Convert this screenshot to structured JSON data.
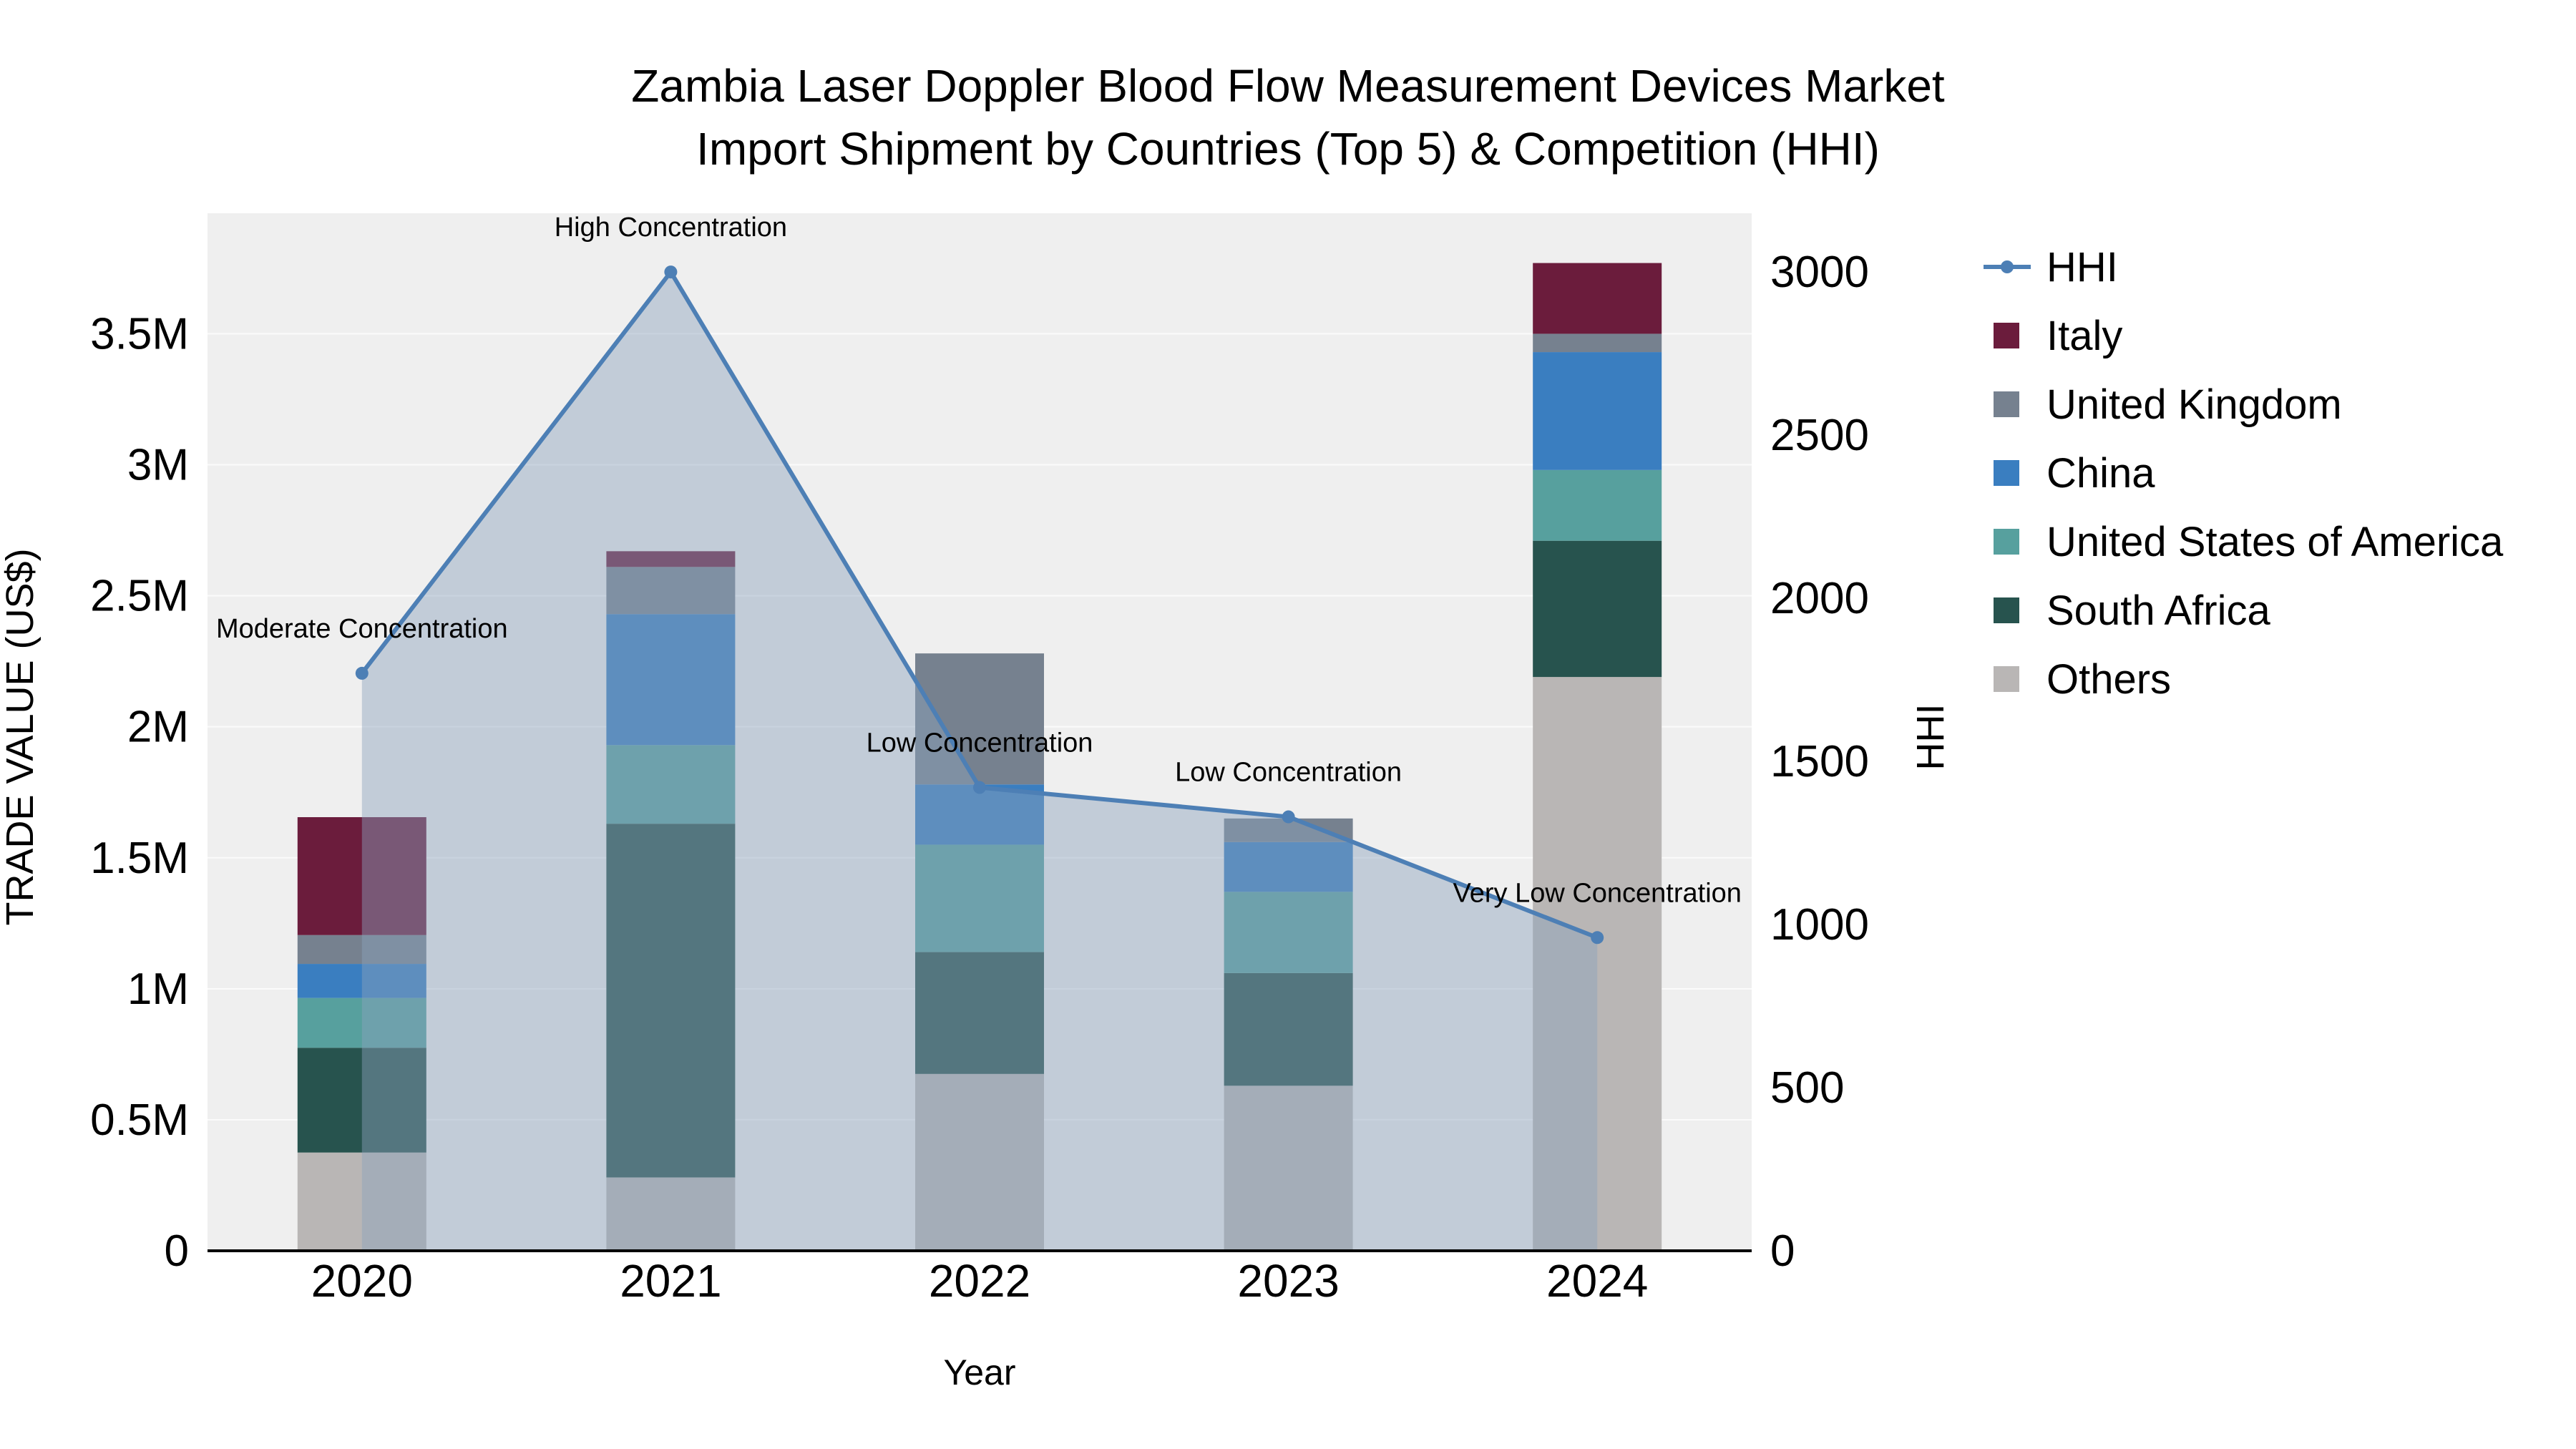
{
  "chart_data": {
    "type": "bar",
    "title_line1": "Zambia Laser Doppler Blood Flow Measurement Devices Market",
    "title_line2": "Import Shipment by Countries (Top 5) & Competition (HHI)",
    "x_categories": [
      "2020",
      "2021",
      "2022",
      "2023",
      "2024"
    ],
    "stack_series": [
      {
        "name": "Others",
        "color": "#b9b6b5",
        "values": [
          375000,
          280000,
          675000,
          630000,
          2190000
        ]
      },
      {
        "name": "South Africa",
        "color": "#27534e",
        "values": [
          400000,
          1350000,
          465000,
          430000,
          520000
        ]
      },
      {
        "name": "United States of America",
        "color": "#57a09e",
        "values": [
          190000,
          300000,
          410000,
          310000,
          270000
        ]
      },
      {
        "name": "China",
        "color": "#3a7ec0",
        "values": [
          130000,
          500000,
          230000,
          190000,
          450000
        ]
      },
      {
        "name": "United Kingdom",
        "color": "#76818f",
        "values": [
          110000,
          180000,
          500000,
          90000,
          70000
        ]
      },
      {
        "name": "Italy",
        "color": "#6b1c3c",
        "values": [
          450000,
          60000,
          0,
          0,
          270000
        ]
      }
    ],
    "line_series": {
      "name": "HHI",
      "color": "#4d7fb5",
      "fill_color": "#8ba1bd",
      "values": [
        1770,
        3000,
        1420,
        1330,
        960
      ]
    },
    "annotations": [
      "Moderate Concentration",
      "High Concentration",
      "Low Concentration",
      "Low Concentration",
      "Very Low Concentration"
    ],
    "legend": [
      "HHI",
      "Italy",
      "United Kingdom",
      "China",
      "United States of America",
      "South Africa",
      "Others"
    ],
    "axes": {
      "x": {
        "title": "Year"
      },
      "left": {
        "title": "TRADE VALUE (US$)",
        "max": 3960000,
        "ticks": [
          {
            "v": 0,
            "label": "0"
          },
          {
            "v": 500000,
            "label": "0.5M"
          },
          {
            "v": 1000000,
            "label": "1M"
          },
          {
            "v": 1500000,
            "label": "1.5M"
          },
          {
            "v": 2000000,
            "label": "2M"
          },
          {
            "v": 2500000,
            "label": "2.5M"
          },
          {
            "v": 3000000,
            "label": "3M"
          },
          {
            "v": 3500000,
            "label": "3.5M"
          }
        ]
      },
      "right": {
        "title": "HHI",
        "max": 3180,
        "ticks": [
          {
            "v": 0,
            "label": "0"
          },
          {
            "v": 500,
            "label": "500"
          },
          {
            "v": 1000,
            "label": "1000"
          },
          {
            "v": 1500,
            "label": "1500"
          },
          {
            "v": 2000,
            "label": "2000"
          },
          {
            "v": 2500,
            "label": "2500"
          },
          {
            "v": 3000,
            "label": "3000"
          }
        ]
      }
    },
    "plot_bg": "#efefef"
  }
}
